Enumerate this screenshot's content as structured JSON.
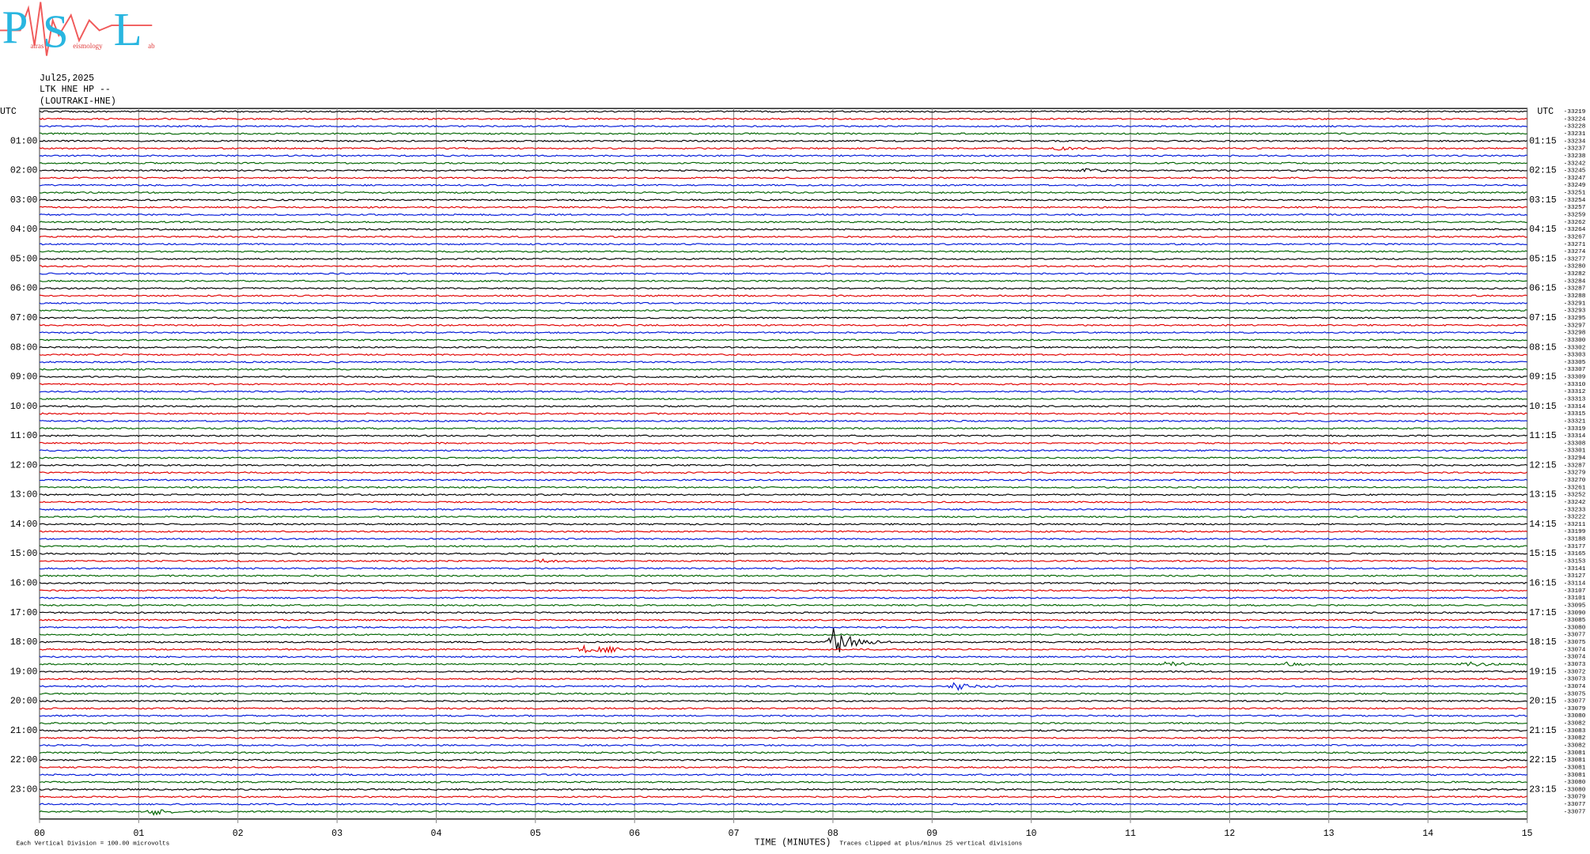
{
  "logo": {
    "letters": [
      "P",
      "S",
      "L"
    ],
    "words": [
      "atras",
      "eismology",
      "ab"
    ]
  },
  "header": {
    "date": "Jul25,2025",
    "station": "LTK HNE HP --",
    "site": "(LOUTRAKI-HNE)"
  },
  "left_labels": [
    "UTC",
    "01:00",
    "02:00",
    "03:00",
    "04:00",
    "05:00",
    "06:00",
    "07:00",
    "08:00",
    "09:00",
    "10:00",
    "11:00",
    "12:00",
    "13:00",
    "14:00",
    "15:00",
    "16:00",
    "17:00",
    "18:00",
    "19:00",
    "20:00",
    "21:00",
    "22:00",
    "23:00"
  ],
  "right_labels": [
    "UTC",
    "01:15",
    "02:15",
    "03:15",
    "04:15",
    "05:15",
    "06:15",
    "07:15",
    "08:15",
    "09:15",
    "10:15",
    "11:15",
    "12:15",
    "13:15",
    "14:15",
    "15:15",
    "16:15",
    "17:15",
    "18:15",
    "19:15",
    "20:15",
    "21:15",
    "22:15",
    "23:15"
  ],
  "trace_offsets": [
    -33219,
    -33224,
    -33228,
    -33231,
    -33234,
    -33237,
    -33238,
    -33242,
    -33245,
    -33247,
    -33249,
    -33251,
    -33254,
    -33257,
    -33259,
    -33262,
    -33264,
    -33267,
    -33271,
    -33274,
    -33277,
    -33280,
    -33282,
    -33284,
    -33287,
    -33288,
    -33291,
    -33293,
    -33295,
    -33297,
    -33298,
    -33300,
    -33302,
    -33303,
    -33305,
    -33307,
    -33309,
    -33310,
    -33312,
    -33313,
    -33314,
    -33315,
    -33321,
    -33319,
    -33314,
    -33308,
    -33301,
    -33294,
    -33287,
    -33279,
    -33270,
    -33261,
    -33252,
    -33242,
    -33233,
    -33222,
    -33211,
    -33199,
    -33188,
    -33177,
    -33165,
    -33153,
    -33141,
    -33127,
    -33114,
    -33107,
    -33101,
    -33095,
    -33090,
    -33085,
    -33080,
    -33077,
    -33075,
    -33074,
    -33074,
    -33073,
    -33072,
    -33073,
    -33074,
    -33075,
    -33077,
    -33079,
    -33080,
    -33082,
    -33083,
    -33082,
    -33082,
    -33081,
    -33081,
    -33081,
    -33081,
    -33080,
    -33080,
    -33079,
    -33077,
    -33077
  ],
  "x_ticks": [
    "00",
    "01",
    "02",
    "03",
    "04",
    "05",
    "06",
    "07",
    "08",
    "09",
    "10",
    "11",
    "12",
    "13",
    "14",
    "15"
  ],
  "footer": {
    "scale": "Each Vertical Division =  100.00 microvolts",
    "axis_title": "TIME (MINUTES)",
    "clip_note": "Traces clipped at plus/minus 25 vertical divisions"
  }
}
